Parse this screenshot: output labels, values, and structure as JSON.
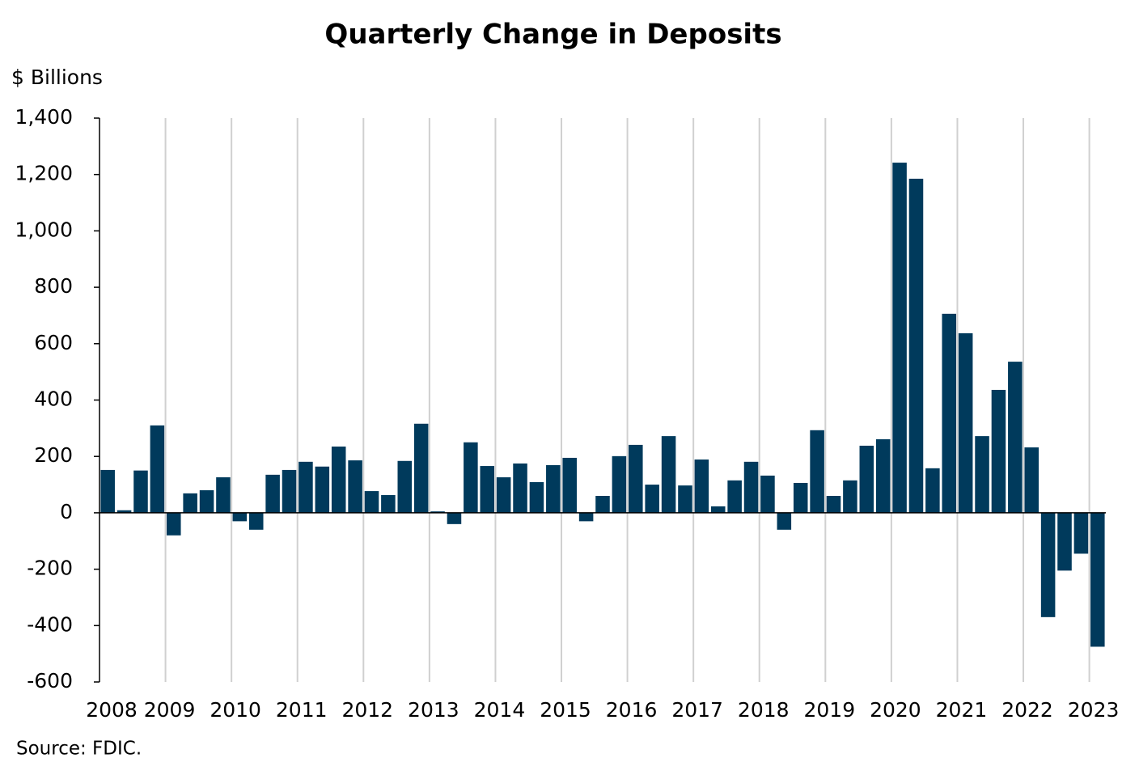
{
  "chart_data": {
    "type": "bar",
    "title": "Quarterly Change in Deposits",
    "y_label": "$ Billions",
    "source": "Source: FDIC.",
    "categories": [
      "2008",
      null,
      null,
      null,
      "2009",
      null,
      null,
      null,
      "2010",
      null,
      null,
      null,
      "2011",
      null,
      null,
      null,
      "2012",
      null,
      null,
      null,
      "2013",
      null,
      null,
      null,
      "2014",
      null,
      null,
      null,
      "2015",
      null,
      null,
      null,
      "2016",
      null,
      null,
      null,
      "2017",
      null,
      null,
      null,
      "2018",
      null,
      null,
      null,
      "2019",
      null,
      null,
      null,
      "2020",
      null,
      null,
      null,
      "2021",
      null,
      null,
      null,
      "2022",
      null,
      null,
      null,
      "2023"
    ],
    "values": [
      152,
      9,
      150,
      310,
      -80,
      69,
      80,
      126,
      -30,
      -60,
      135,
      152,
      181,
      164,
      235,
      186,
      77,
      63,
      184,
      316,
      5,
      -40,
      250,
      166,
      126,
      175,
      109,
      169,
      195,
      -30,
      60,
      201,
      241,
      100,
      272,
      97,
      189,
      23,
      115,
      181,
      132,
      -60,
      106,
      293,
      60,
      115,
      238,
      261,
      1242,
      1185,
      158,
      706,
      637,
      272,
      436,
      536,
      232,
      -370,
      -205,
      -145,
      -475
    ],
    "color": "#003a5c",
    "ylim": [
      -600,
      1400
    ],
    "yticks": [
      -600,
      -400,
      -200,
      0,
      200,
      400,
      600,
      800,
      {
        "value": 1000,
        "label": "1,000"
      },
      {
        "value": 1200,
        "label": "1,200"
      },
      {
        "value": 1400,
        "label": "1,400"
      }
    ],
    "grid": true
  }
}
